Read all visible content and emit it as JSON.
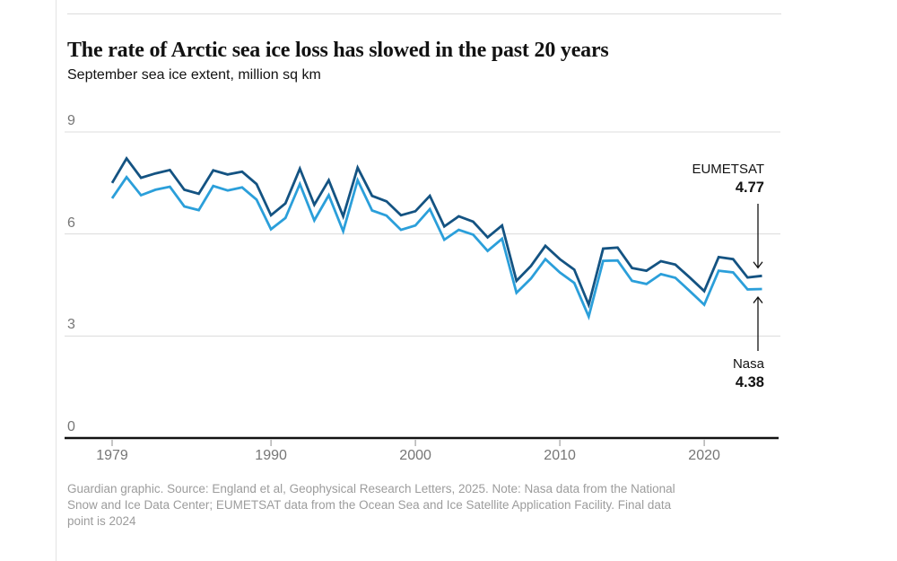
{
  "page": {
    "title": "The rate of Arctic sea ice loss has slowed in the past 20 years",
    "subtitle": "September sea ice extent, million sq km",
    "source_lines": [
      "Guardian graphic. Source: England et al, Geophysical Research Letters, 2025. Note: Nasa data from the National",
      "Snow and Ice Data Center; EUMETSAT data from the Ocean Sea and Ice Satellite Application Facility. Final data",
      "point is 2024"
    ]
  },
  "annotations": {
    "eumetsat_label": "EUMETSAT",
    "eumetsat_value": "4.77",
    "nasa_label": "Nasa",
    "nasa_value": "4.38"
  },
  "chart_data": {
    "type": "line",
    "title": "The rate of Arctic sea ice loss has slowed in the past 20 years",
    "subtitle": "September sea ice extent, million sq km",
    "xlabel": "",
    "ylabel": "million sq km",
    "xlim": [
      1979,
      2024
    ],
    "ylim": [
      0,
      9
    ],
    "xticks": [
      1979,
      1990,
      2000,
      2010,
      2020
    ],
    "yticks": [
      0,
      3,
      6,
      9
    ],
    "grid": "horizontal",
    "legend_position": "annotations-right",
    "grid_color": "#dcdcdc",
    "axis_color": "#121212",
    "tick_color": "#a0a0a0",
    "x": [
      1979,
      1980,
      1981,
      1982,
      1983,
      1984,
      1985,
      1986,
      1987,
      1988,
      1989,
      1990,
      1991,
      1992,
      1993,
      1994,
      1995,
      1996,
      1997,
      1998,
      1999,
      2000,
      2001,
      2002,
      2003,
      2004,
      2005,
      2006,
      2007,
      2008,
      2009,
      2010,
      2011,
      2012,
      2013,
      2014,
      2015,
      2016,
      2017,
      2018,
      2019,
      2020,
      2021,
      2022,
      2023,
      2024
    ],
    "series": [
      {
        "name": "EUMETSAT",
        "color": "#145382",
        "final_value": 4.77,
        "values": [
          7.5,
          8.22,
          7.65,
          7.78,
          7.88,
          7.3,
          7.18,
          7.87,
          7.75,
          7.83,
          7.47,
          6.55,
          6.9,
          7.92,
          6.86,
          7.58,
          6.52,
          7.95,
          7.12,
          6.96,
          6.55,
          6.67,
          7.12,
          6.22,
          6.52,
          6.36,
          5.9,
          6.25,
          4.62,
          5.06,
          5.65,
          5.26,
          4.95,
          3.92,
          5.57,
          5.6,
          5.0,
          4.92,
          5.2,
          5.1,
          4.72,
          4.32,
          5.32,
          5.26,
          4.72,
          4.77
        ]
      },
      {
        "name": "Nasa",
        "color": "#2b9fda",
        "final_value": 4.38,
        "values": [
          7.05,
          7.67,
          7.14,
          7.3,
          7.39,
          6.81,
          6.7,
          7.41,
          7.28,
          7.37,
          7.01,
          6.14,
          6.47,
          7.47,
          6.4,
          7.14,
          6.08,
          7.58,
          6.69,
          6.54,
          6.12,
          6.25,
          6.73,
          5.83,
          6.12,
          5.98,
          5.5,
          5.86,
          4.27,
          4.69,
          5.26,
          4.87,
          4.56,
          3.57,
          5.21,
          5.22,
          4.62,
          4.53,
          4.82,
          4.71,
          4.32,
          3.92,
          4.92,
          4.87,
          4.37,
          4.38
        ]
      }
    ]
  }
}
